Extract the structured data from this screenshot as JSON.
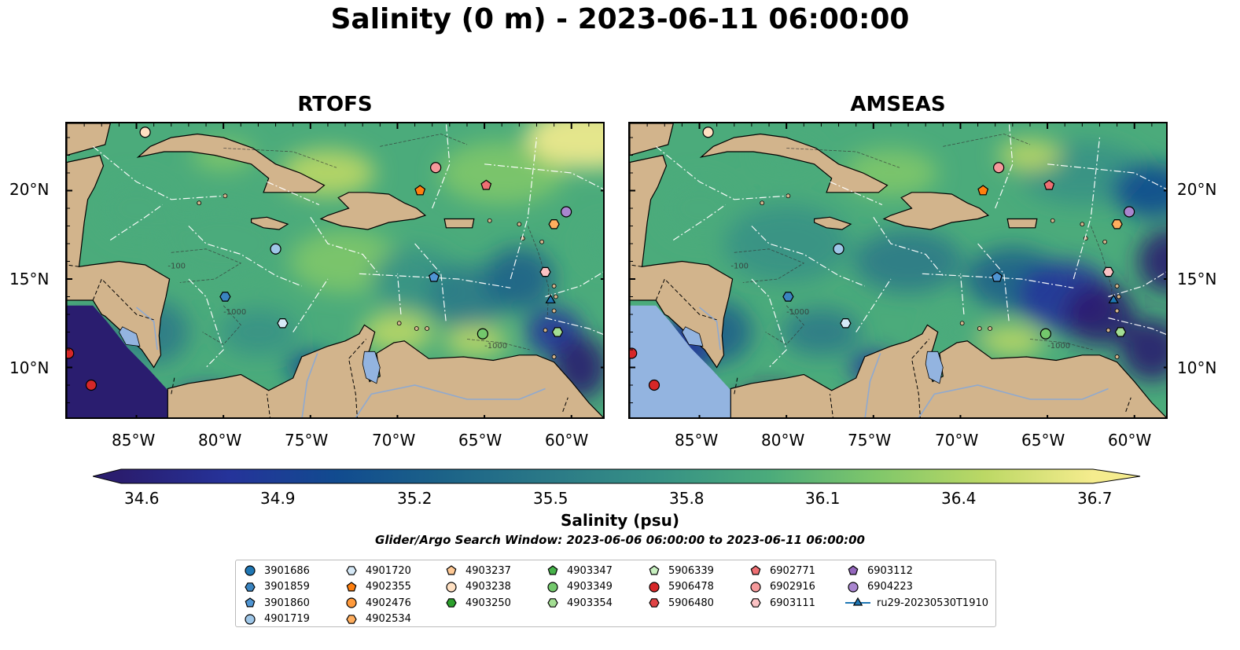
{
  "title": "Salinity (0 m) - 2023-06-11 06:00:00",
  "panels": [
    {
      "title": "RTOFS",
      "variant": "rtofs"
    },
    {
      "title": "AMSEAS",
      "variant": "amseas"
    }
  ],
  "lat_labels": [
    "20°N",
    "15°N",
    "10°N"
  ],
  "lon_labels": [
    "85°W",
    "80°W",
    "75°W",
    "70°W",
    "65°W",
    "60°W"
  ],
  "colorbar": {
    "label": "Salinity (psu)",
    "ticks": [
      "34.6",
      "34.9",
      "35.2",
      "35.5",
      "35.8",
      "36.1",
      "36.4",
      "36.7"
    ],
    "vmin": 34.6,
    "vmax": 36.7,
    "colormap": "haline",
    "stops": [
      "#2a1d6f",
      "#25339a",
      "#114b8f",
      "#1c6388",
      "#2b7a87",
      "#379285",
      "#4bab7b",
      "#80c76a",
      "#bcd865",
      "#f5ec8e"
    ]
  },
  "search_window": "Glider/Argo Search Window: 2023-06-06 06:00:00 to 2023-06-11 06:00:00",
  "land_color": "#d2b48c",
  "bathymetry_labels": [
    "-100",
    "-1000"
  ],
  "legend": [
    {
      "label": "3901686",
      "marker": "circle",
      "color": "#1f77b4"
    },
    {
      "label": "3901859",
      "marker": "hexagon",
      "color": "#3a84c0"
    },
    {
      "label": "3901860",
      "marker": "pentagon",
      "color": "#4f95d3"
    },
    {
      "label": "4901719",
      "marker": "circle",
      "color": "#9fc7e8"
    },
    {
      "label": "4901720",
      "marker": "hexagon",
      "color": "#d6e9f7"
    },
    {
      "label": "4902355",
      "marker": "pentagon",
      "color": "#ff7f0e"
    },
    {
      "label": "4902476",
      "marker": "circle",
      "color": "#ff9a3c"
    },
    {
      "label": "4902534",
      "marker": "hexagon",
      "color": "#ffae5e"
    },
    {
      "label": "4903237",
      "marker": "pentagon",
      "color": "#ffc995"
    },
    {
      "label": "4903238",
      "marker": "circle",
      "color": "#ffe0c2"
    },
    {
      "label": "4903250",
      "marker": "hexagon",
      "color": "#2ca02c"
    },
    {
      "label": "4903347",
      "marker": "pentagon",
      "color": "#46b24a"
    },
    {
      "label": "4903349",
      "marker": "circle",
      "color": "#73c86c"
    },
    {
      "label": "4903354",
      "marker": "hexagon",
      "color": "#a3de93"
    },
    {
      "label": "5906339",
      "marker": "pentagon",
      "color": "#c8f0c0"
    },
    {
      "label": "5906478",
      "marker": "circle",
      "color": "#d62728"
    },
    {
      "label": "5906480",
      "marker": "hexagon",
      "color": "#e04446"
    },
    {
      "label": "6902771",
      "marker": "pentagon",
      "color": "#ef6f73"
    },
    {
      "label": "6902916",
      "marker": "circle",
      "color": "#f5999b"
    },
    {
      "label": "6903111",
      "marker": "hexagon",
      "color": "#fbc2c4"
    },
    {
      "label": "6903112",
      "marker": "pentagon",
      "color": "#9467bd"
    },
    {
      "label": "6904223",
      "marker": "circle",
      "color": "#a986cf"
    },
    {
      "label": "ru29-20230530T1910",
      "marker": "triangle-line",
      "color": "#1f77b4"
    }
  ],
  "observations": [
    {
      "id": "3901860",
      "lon": -67.9,
      "lat": 15.1
    },
    {
      "id": "3901859",
      "lon": -79.9,
      "lat": 14.0
    },
    {
      "id": "4901719",
      "lon": -77.0,
      "lat": 16.7
    },
    {
      "id": "4901720",
      "lon": -76.6,
      "lat": 12.5
    },
    {
      "id": "4902355",
      "lon": -68.7,
      "lat": 20.0
    },
    {
      "id": "4902534",
      "lon": -61.0,
      "lat": 18.1
    },
    {
      "id": "4903238",
      "lon": -84.5,
      "lat": 23.3
    },
    {
      "id": "4903349",
      "lon": -65.1,
      "lat": 11.9
    },
    {
      "id": "4903354",
      "lon": -60.8,
      "lat": 12.0
    },
    {
      "id": "5906478",
      "lon": -88.9,
      "lat": 10.8
    },
    {
      "id": "5906478",
      "lon": -87.6,
      "lat": 9.0
    },
    {
      "id": "6902771",
      "lon": -64.9,
      "lat": 20.3
    },
    {
      "id": "6902916",
      "lon": -67.8,
      "lat": 21.3
    },
    {
      "id": "6903111",
      "lon": -61.5,
      "lat": 15.4
    },
    {
      "id": "6904223",
      "lon": -60.3,
      "lat": 18.8
    },
    {
      "id": "ru29-20230530T1910",
      "lon": -61.2,
      "lat": 13.8
    }
  ]
}
